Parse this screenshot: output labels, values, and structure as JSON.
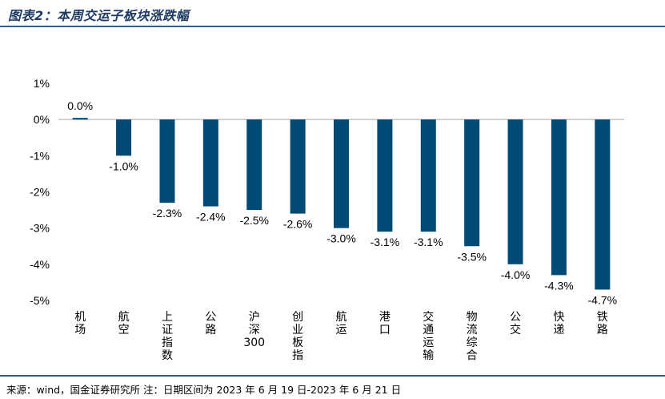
{
  "header": {
    "title": "图表2：本周交运子板块涨跌幅"
  },
  "footer": {
    "source": "来源：wind，国金证券研究所   注：日期区间为 2023 年 6 月 19 日-2023 年 6 月 21 日"
  },
  "chart_data": {
    "type": "bar",
    "title": "",
    "xlabel": "",
    "ylabel": "",
    "ylim": [
      -5,
      1
    ],
    "yticks": [
      "1%",
      "0%",
      "-1%",
      "-2%",
      "-3%",
      "-4%",
      "-5%"
    ],
    "ytick_values": [
      1,
      0,
      -1,
      -2,
      -3,
      -4,
      -5
    ],
    "grid": false,
    "legend": "none",
    "bar_color": "#004a75",
    "categories": [
      "机场",
      "航空",
      "上证指数",
      "公路",
      "沪深300",
      "创业板指",
      "航运",
      "港口",
      "交通运输",
      "物流综合",
      "公交",
      "快递",
      "铁路"
    ],
    "values": [
      0.0,
      -1.0,
      -2.3,
      -2.4,
      -2.5,
      -2.6,
      -3.0,
      -3.1,
      -3.1,
      -3.5,
      -4.0,
      -4.3,
      -4.7
    ],
    "data_labels": [
      "0.0%",
      "-1.0%",
      "-2.3%",
      "-2.4%",
      "-2.5%",
      "-2.6%",
      "-3.0%",
      "-3.1%",
      "-3.1%",
      "-3.5%",
      "-4.0%",
      "-4.3%",
      "-4.7%"
    ]
  }
}
